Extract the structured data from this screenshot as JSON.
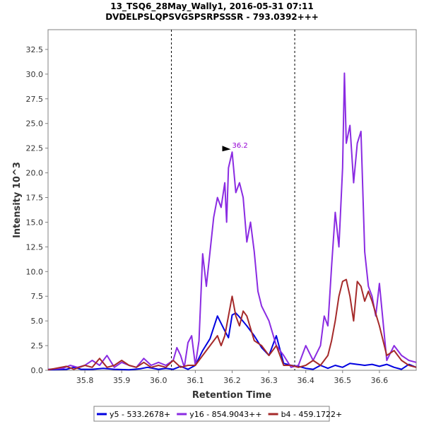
{
  "chart_data": {
    "type": "line",
    "title_lines": [
      "13_TSQ6_28May_Wally1, 2016-05-31 07:11",
      "DVDELPSLQPSVGSPSRPSSSR - 793.0392+++"
    ],
    "xlabel": "Retention Time",
    "ylabel": "Intensity 10^3",
    "xlim": [
      35.7,
      36.7
    ],
    "ylim": [
      0,
      34.5
    ],
    "x_ticks": [
      "35.8",
      "35.9",
      "36.0",
      "36.1",
      "36.2",
      "36.3",
      "36.4",
      "36.5",
      "36.6"
    ],
    "x_tick_values": [
      35.8,
      35.9,
      36.0,
      36.1,
      36.2,
      36.3,
      36.4,
      36.5,
      36.6
    ],
    "y_ticks": [
      "0.0",
      "2.5",
      "5.0",
      "7.5",
      "10.0",
      "12.5",
      "15.0",
      "17.5",
      "20.0",
      "22.5",
      "25.0",
      "27.5",
      "30.0",
      "32.5"
    ],
    "y_tick_values": [
      0,
      2.5,
      5,
      7.5,
      10,
      12.5,
      15,
      17.5,
      20,
      22.5,
      25,
      27.5,
      30,
      32.5
    ],
    "integration_boundaries": [
      36.035,
      36.37
    ],
    "peak_annotation": {
      "label": "36.2",
      "x": 36.2,
      "y": 22.1,
      "color": "#9400d3"
    },
    "legend_placement": "bottom-center",
    "series": [
      {
        "name": "y5 - 533.2678+",
        "color": "#0000e0",
        "x": [
          35.7,
          35.75,
          35.77,
          35.79,
          35.82,
          35.85,
          35.88,
          35.92,
          35.95,
          35.97,
          36.0,
          36.02,
          36.04,
          36.06,
          36.08,
          36.1,
          36.12,
          36.14,
          36.16,
          36.18,
          36.19,
          36.2,
          36.21,
          36.22,
          36.24,
          36.26,
          36.28,
          36.3,
          36.32,
          36.34,
          36.36,
          36.38,
          36.4,
          36.42,
          36.44,
          36.46,
          36.48,
          36.5,
          36.52,
          36.54,
          36.56,
          36.58,
          36.6,
          36.62,
          36.64,
          36.66,
          36.68,
          36.7
        ],
        "y": [
          0.05,
          0.1,
          0.3,
          0.1,
          0.1,
          0.2,
          0.1,
          0.05,
          0.15,
          0.3,
          0.1,
          0.2,
          0.1,
          0.4,
          0.1,
          0.5,
          2.0,
          3.2,
          5.5,
          4.0,
          3.3,
          5.6,
          5.8,
          5.4,
          4.5,
          3.5,
          2.3,
          1.5,
          3.5,
          0.7,
          0.5,
          0.4,
          0.2,
          0.1,
          0.5,
          0.2,
          0.5,
          0.3,
          0.7,
          0.6,
          0.5,
          0.6,
          0.4,
          0.6,
          0.3,
          0.1,
          0.6,
          0.3
        ]
      },
      {
        "name": "y16 - 854.9043++",
        "color": "#8a2be2",
        "x": [
          35.7,
          35.74,
          35.76,
          35.78,
          35.8,
          35.82,
          35.84,
          35.86,
          35.88,
          35.9,
          35.92,
          35.94,
          35.96,
          35.98,
          36.0,
          36.02,
          36.04,
          36.05,
          36.06,
          36.07,
          36.08,
          36.09,
          36.1,
          36.11,
          36.12,
          36.13,
          36.14,
          36.15,
          36.16,
          36.17,
          36.18,
          36.185,
          36.19,
          36.2,
          36.21,
          36.22,
          36.23,
          36.24,
          36.25,
          36.26,
          36.27,
          36.28,
          36.3,
          36.32,
          36.34,
          36.36,
          36.38,
          36.4,
          36.42,
          36.44,
          36.45,
          36.46,
          36.47,
          36.48,
          36.49,
          36.5,
          36.505,
          36.51,
          36.52,
          36.53,
          36.54,
          36.55,
          36.56,
          36.57,
          36.58,
          36.59,
          36.6,
          36.62,
          36.64,
          36.66,
          36.68,
          36.7
        ],
        "y": [
          0.1,
          0.2,
          0.5,
          0.3,
          0.5,
          1.0,
          0.5,
          1.5,
          0.3,
          0.8,
          0.5,
          0.3,
          1.2,
          0.5,
          0.8,
          0.5,
          1.0,
          2.3,
          1.5,
          0.3,
          2.8,
          3.5,
          0.5,
          3.0,
          11.8,
          8.5,
          12.0,
          15.5,
          17.5,
          16.5,
          19.0,
          15.0,
          20.5,
          22.1,
          18.0,
          19.0,
          17.5,
          13.0,
          15.0,
          12.0,
          8.0,
          6.5,
          5.0,
          2.5,
          1.5,
          0.3,
          0.5,
          2.5,
          1.0,
          2.5,
          5.5,
          4.5,
          10.5,
          16.0,
          12.5,
          20.5,
          30.1,
          23.0,
          24.8,
          19.0,
          23.0,
          24.2,
          12.0,
          8.5,
          7.5,
          5.5,
          8.8,
          1.0,
          2.5,
          1.5,
          1.0,
          0.8
        ]
      },
      {
        "name": "b4 - 459.1722+",
        "color": "#a52a2a",
        "x": [
          35.7,
          35.75,
          35.77,
          35.8,
          35.82,
          35.84,
          35.86,
          35.88,
          35.9,
          35.92,
          35.94,
          35.96,
          35.98,
          36.0,
          36.02,
          36.04,
          36.06,
          36.08,
          36.1,
          36.12,
          36.14,
          36.16,
          36.17,
          36.18,
          36.19,
          36.2,
          36.21,
          36.22,
          36.23,
          36.24,
          36.26,
          36.28,
          36.3,
          36.32,
          36.34,
          36.36,
          36.38,
          36.4,
          36.42,
          36.44,
          36.46,
          36.47,
          36.48,
          36.49,
          36.5,
          36.51,
          36.52,
          36.53,
          36.54,
          36.55,
          36.56,
          36.57,
          36.58,
          36.6,
          36.62,
          36.64,
          36.66,
          36.68,
          36.7
        ],
        "y": [
          0.05,
          0.4,
          0.1,
          0.5,
          0.3,
          1.2,
          0.3,
          0.5,
          1.0,
          0.5,
          0.3,
          0.8,
          0.3,
          0.5,
          0.3,
          1.0,
          0.3,
          0.5,
          0.5,
          1.5,
          2.5,
          3.5,
          2.5,
          3.5,
          5.5,
          7.5,
          5.5,
          4.5,
          6.0,
          5.5,
          3.0,
          2.5,
          1.5,
          2.5,
          0.5,
          0.5,
          0.3,
          0.5,
          1.0,
          0.5,
          1.5,
          3.0,
          5.0,
          7.5,
          9.0,
          9.2,
          7.5,
          5.0,
          9.0,
          8.5,
          7.0,
          8.0,
          7.0,
          4.5,
          1.5,
          2.0,
          1.0,
          0.5,
          0.3
        ]
      }
    ]
  }
}
